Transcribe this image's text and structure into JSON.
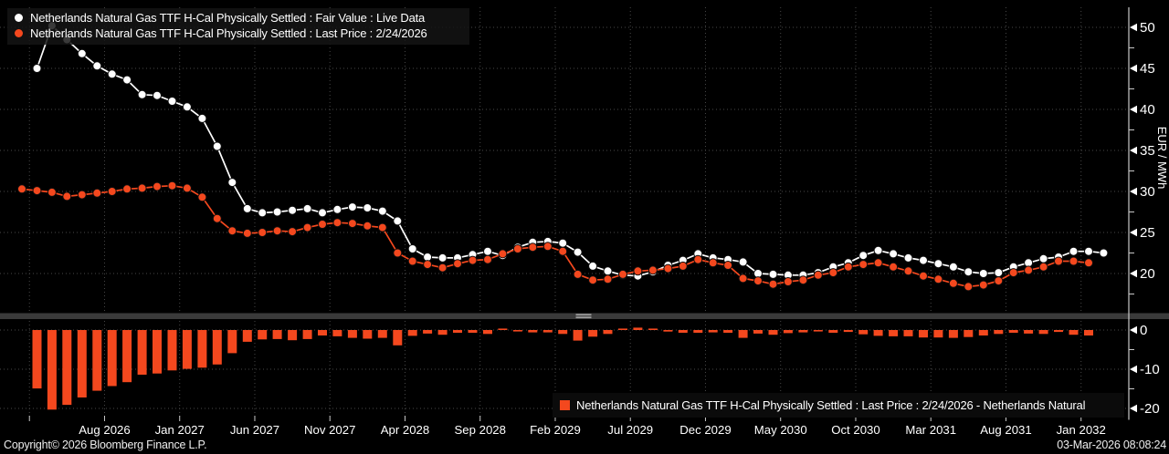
{
  "legend_top": {
    "series": [
      {
        "label": "Netherlands Natural Gas TTF H-Cal Physically Settled : Fair Value : Live Data",
        "marker_color": "#ffffff"
      },
      {
        "label": "Netherlands Natural Gas TTF H-Cal Physically Settled : Last Price : 2/24/2026",
        "marker_color": "#f4481e"
      }
    ]
  },
  "legend_bottom": {
    "label": "Netherlands Natural Gas TTF H-Cal Physically Settled : Last Price : 2/24/2026 - Netherlands Natural",
    "marker_color": "#f4481e"
  },
  "footer": {
    "copyright": "Copyright© 2026 Bloomberg Finance L.P.",
    "timestamp": "03-Mar-2026 08:08:24"
  },
  "colors": {
    "background": "#000000",
    "grid": "#474747",
    "axis": "#c9c9c9",
    "fair_value": "#ffffff",
    "last_price": "#f4481e",
    "divider": "#3a3a3a",
    "divider_handle": "#9c9c9c"
  },
  "chart_data": {
    "type": "multi-panel",
    "x_ticks": {
      "labels": [
        "Aug 2026",
        "Jan 2027",
        "Jun 2027",
        "Nov 2027",
        "Apr 2028",
        "Sep 2028",
        "Feb 2029",
        "Jul 2029",
        "Dec 2029",
        "May 2030",
        "Oct 2030",
        "Mar 2031",
        "Aug 2031",
        "Jan 2032"
      ],
      "first_slot": 5.5,
      "slot_step": 5,
      "extra_unlabeled_slot": 0.5
    },
    "panels": [
      {
        "type": "line",
        "name": "price-panel",
        "ylabel": "EUR / MWh",
        "ylim": [
          15,
          52.5
        ],
        "yticks": [
          20,
          25,
          30,
          35,
          40,
          45,
          50
        ],
        "yticks_minor": [
          17.5,
          22.5,
          27.5,
          32.5,
          37.5,
          42.5,
          47.5
        ],
        "grid": true,
        "series": [
          {
            "name": "Fair Value : Live Data",
            "color": "#ffffff",
            "start_index": 1,
            "values": [
              45.0,
              50.2,
              48.5,
              46.8,
              45.3,
              44.3,
              43.6,
              41.8,
              41.7,
              41.0,
              40.3,
              38.9,
              35.5,
              31.1,
              27.9,
              27.4,
              27.5,
              27.7,
              27.9,
              27.4,
              27.8,
              28.1,
              28.0,
              27.6,
              26.4,
              23.0,
              22.0,
              21.9,
              21.9,
              22.3,
              22.7,
              22.2,
              23.2,
              23.8,
              23.9,
              23.7,
              22.6,
              20.9,
              20.3,
              19.8,
              19.7,
              20.2,
              21.0,
              21.6,
              22.4,
              21.9,
              21.7,
              21.4,
              20.0,
              19.9,
              19.8,
              19.8,
              20.1,
              20.8,
              21.3,
              22.2,
              22.8,
              22.4,
              21.9,
              21.6,
              21.2,
              20.8,
              20.2,
              20.0,
              20.1,
              20.8,
              21.3,
              21.8,
              22.0,
              22.7,
              22.7,
              22.5
            ]
          },
          {
            "name": "Last Price : 2/24/2026",
            "color": "#f4481e",
            "start_index": 0,
            "values": [
              30.3,
              30.1,
              29.9,
              29.4,
              29.6,
              29.8,
              30.0,
              30.3,
              30.4,
              30.6,
              30.7,
              30.4,
              29.3,
              26.7,
              25.2,
              24.9,
              25.0,
              25.2,
              25.1,
              25.6,
              26.0,
              26.2,
              26.1,
              25.8,
              25.6,
              22.5,
              21.5,
              21.1,
              20.7,
              21.2,
              21.6,
              21.7,
              22.4,
              23.0,
              23.2,
              23.3,
              22.7,
              19.9,
              19.2,
              19.3,
              19.9,
              20.3,
              20.4,
              20.6,
              20.9,
              21.7,
              21.3,
              21.0,
              19.4,
              19.1,
              18.7,
              19.0,
              19.2,
              19.8,
              20.1,
              20.8,
              21.1,
              21.3,
              20.8,
              20.3,
              19.7,
              19.3,
              18.8,
              18.4,
              18.6,
              19.1,
              20.1,
              20.4,
              20.8,
              21.5,
              21.5,
              21.3
            ]
          }
        ]
      },
      {
        "type": "bar",
        "name": "spread-panel",
        "ylim": [
          -23,
          2.5
        ],
        "yticks": [
          0,
          -10,
          -20
        ],
        "yticks_minor": [
          -5,
          -15
        ],
        "grid": true,
        "series": [
          {
            "name": "Last Price - Fair Value",
            "color": "#f4481e",
            "start_index": 1,
            "values": [
              -14.9,
              -20.3,
              -19.1,
              -17.2,
              -15.5,
              -14.3,
              -13.3,
              -11.4,
              -11.1,
              -10.3,
              -9.9,
              -9.6,
              -8.8,
              -5.9,
              -3.0,
              -2.4,
              -2.3,
              -2.6,
              -2.3,
              -1.4,
              -1.6,
              -2.0,
              -2.2,
              -2.0,
              -3.9,
              -1.5,
              -0.9,
              -1.2,
              -0.7,
              -0.7,
              -1.0,
              0.2,
              -0.2,
              -0.6,
              -0.6,
              -1.0,
              -2.7,
              -1.7,
              -1.0,
              0.1,
              0.6,
              0.2,
              -0.4,
              -0.7,
              -0.7,
              -0.6,
              -0.7,
              -2.0,
              -0.9,
              -1.2,
              -0.8,
              -0.6,
              -0.3,
              -0.7,
              -0.5,
              -1.1,
              -1.5,
              -1.6,
              -1.6,
              -1.9,
              -1.9,
              -2.0,
              -1.8,
              -1.4,
              -1.0,
              -0.7,
              -0.9,
              -1.0,
              -0.5,
              -1.2,
              -1.4
            ]
          }
        ]
      }
    ]
  }
}
